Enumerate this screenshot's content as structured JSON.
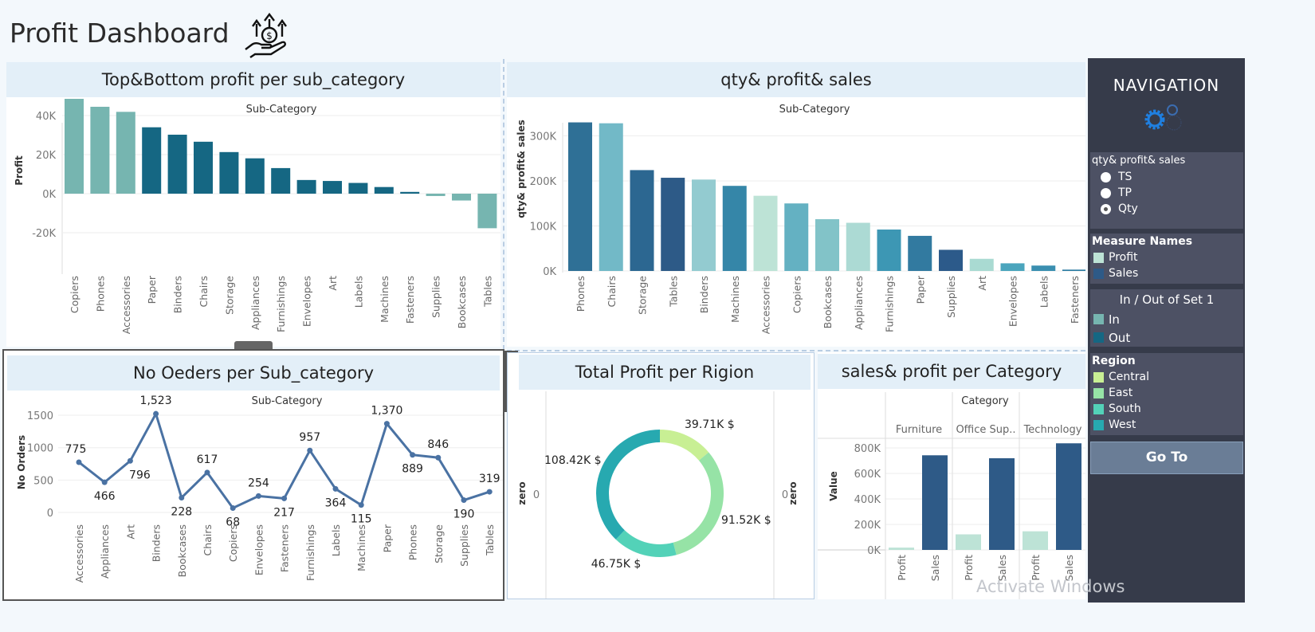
{
  "header": {
    "title": "Profit Dashboard",
    "logo_icon": "money-growth-hand-icon"
  },
  "panels": {
    "top_left": {
      "title": "Top&Bottom profit per sub_category"
    },
    "top_right": {
      "title": "qty& profit& sales"
    },
    "bottom_left": {
      "title": "No Oeders per Sub_category"
    },
    "bottom_mid": {
      "title": "Total Profit per Rigion"
    },
    "bottom_right": {
      "title": "sales& profit per Category"
    }
  },
  "navigation": {
    "title": "NAVIGATION",
    "icon": "gears-icon",
    "parameter": {
      "label": "qty& profit& sales",
      "options": [
        "TS",
        "TP",
        "Qty"
      ],
      "selected": "Qty"
    },
    "measure_names": {
      "title": "Measure Names",
      "items": [
        {
          "label": "Profit",
          "color": "#bde3d6"
        },
        {
          "label": "Sales",
          "color": "#2e5a87"
        }
      ]
    },
    "set_legend": {
      "title": "In / Out of Set 1",
      "items": [
        {
          "label": "In",
          "color": "#76b5b0"
        },
        {
          "label": "Out",
          "color": "#156783"
        }
      ]
    },
    "region_legend": {
      "title": "Region",
      "items": [
        {
          "label": "Central",
          "color": "#c8ef94"
        },
        {
          "label": "East",
          "color": "#96e3a6"
        },
        {
          "label": "South",
          "color": "#53d2b8"
        },
        {
          "label": "West",
          "color": "#27a9b0"
        }
      ]
    },
    "goto_label": "Go To"
  },
  "tooltip_toolbar": {
    "icons": [
      "close-icon",
      "popout-icon",
      "filter-icon",
      "more-options-icon"
    ]
  },
  "watermark": "Activate Windows",
  "chart_data": [
    {
      "type": "bar",
      "title": "Sub-Category",
      "ylabel": "Profit",
      "ylim": [
        -20000,
        60000
      ],
      "yticks": [
        "-20K",
        "0K",
        "20K",
        "40K"
      ],
      "grid": true,
      "categories": [
        "Copiers",
        "Phones",
        "Accessories",
        "Paper",
        "Binders",
        "Chairs",
        "Storage",
        "Appliances",
        "Furnishings",
        "Envelopes",
        "Art",
        "Labels",
        "Machines",
        "Fasteners",
        "Supplies",
        "Bookcases",
        "Tables"
      ],
      "values": [
        55600,
        44500,
        41900,
        34000,
        30200,
        26600,
        21300,
        18100,
        13100,
        7000,
        6500,
        5500,
        3400,
        900,
        -1200,
        -3500,
        -17700
      ],
      "set": [
        "In",
        "In",
        "In",
        "Out",
        "Out",
        "Out",
        "Out",
        "Out",
        "Out",
        "Out",
        "Out",
        "Out",
        "Out",
        "Out",
        "In",
        "In",
        "In"
      ]
    },
    {
      "type": "bar",
      "title": "Sub-Category",
      "ylabel": "qty& profit& sales",
      "ylim": [
        0,
        340000
      ],
      "yticks": [
        "0K",
        "100K",
        "200K",
        "300K"
      ],
      "grid": true,
      "categories": [
        "Phones",
        "Chairs",
        "Storage",
        "Tables",
        "Binders",
        "Machines",
        "Accessories",
        "Copiers",
        "Bookcases",
        "Appliances",
        "Furnishings",
        "Paper",
        "Supplies",
        "Art",
        "Envelopes",
        "Labels",
        "Fasteners"
      ],
      "values": [
        330000,
        328000,
        224000,
        207000,
        203000,
        189000,
        167000,
        150000,
        115000,
        107000,
        92000,
        78000,
        47000,
        27000,
        17000,
        12000,
        3000
      ],
      "colors": [
        "#2f7096",
        "#72b9c7",
        "#2c6791",
        "#2d5a87",
        "#93cbd0",
        "#3586a8",
        "#bde3d6",
        "#64b1c2",
        "#82c3c8",
        "#acdad4",
        "#3d97b4",
        "#327aa0",
        "#2c5a8a",
        "#a9dad2",
        "#4ba5bd",
        "#3a8fb0",
        "#2e7ea3"
      ]
    },
    {
      "type": "line",
      "title": "Sub-Category",
      "ylabel": "No Orders",
      "ylim": [
        0,
        1600
      ],
      "yticks": [
        "0",
        "500",
        "1000",
        "1500"
      ],
      "grid": true,
      "categories": [
        "Accessories",
        "Appliances",
        "Art",
        "Binders",
        "Bookcases",
        "Chairs",
        "Copiers",
        "Envelopes",
        "Fasteners",
        "Furnishings",
        "Labels",
        "Machines",
        "Paper",
        "Phones",
        "Storage",
        "Supplies",
        "Tables"
      ],
      "values": [
        775,
        466,
        796,
        1523,
        228,
        617,
        68,
        254,
        217,
        957,
        364,
        115,
        1370,
        889,
        846,
        190,
        319
      ],
      "labels": [
        "775",
        "466",
        "796",
        "1,523",
        "228",
        "617",
        "68",
        "254",
        "217",
        "957",
        "364",
        "115",
        "1,370",
        "889",
        "846",
        "190",
        "319"
      ]
    },
    {
      "type": "pie",
      "donut": true,
      "axis_label": "zero",
      "axis_value": "0",
      "categories": [
        "Central",
        "East",
        "South",
        "West"
      ],
      "values": [
        39.71,
        91.52,
        46.75,
        108.42
      ],
      "labels": [
        "39.71K $",
        "91.52K $",
        "46.75K $",
        "108.42K $"
      ]
    },
    {
      "type": "bar",
      "title": "Category",
      "ylabel": "Value",
      "ylim": [
        0,
        850000
      ],
      "yticks": [
        "0K",
        "200K",
        "400K",
        "600K",
        "800K"
      ],
      "categories": [
        "Furniture",
        "Office Sup..",
        "Technology"
      ],
      "series": [
        {
          "name": "Profit",
          "values": [
            18000,
            122000,
            146000
          ]
        },
        {
          "name": "Sales",
          "values": [
            742000,
            719000,
            836000
          ]
        }
      ]
    }
  ]
}
